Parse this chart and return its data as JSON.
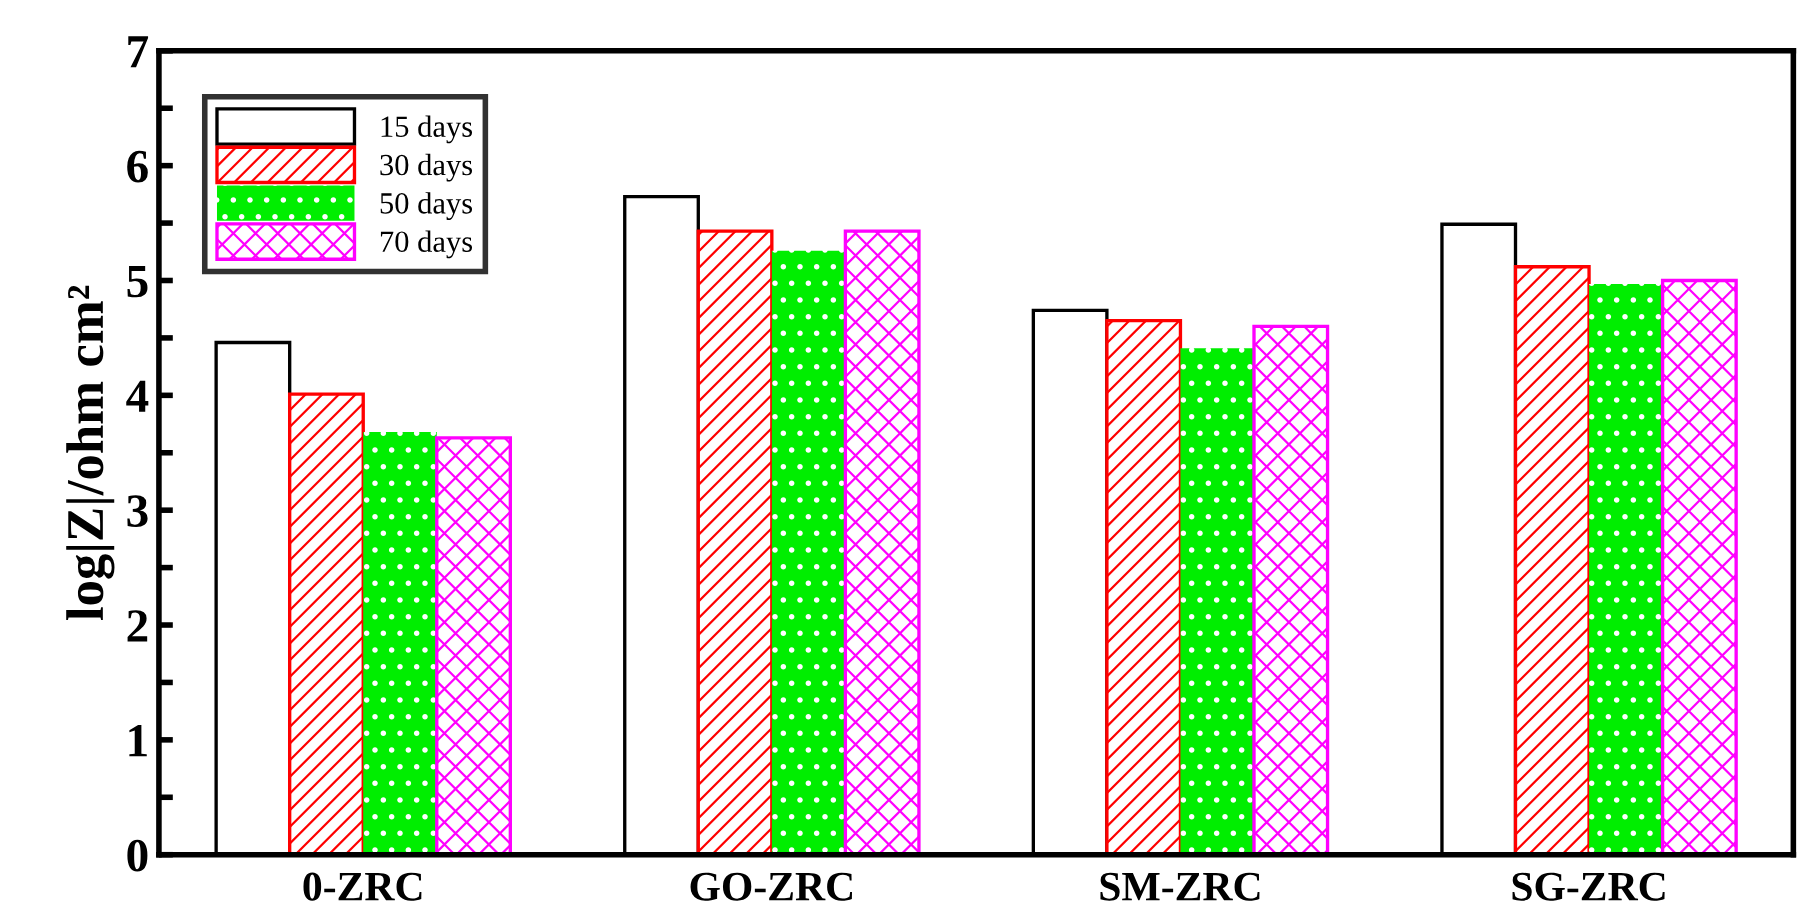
{
  "chart_data": {
    "type": "bar",
    "ylabel": "log|Z|/ohm cm²",
    "categories": [
      "0-ZRC",
      "GO-ZRC",
      "SM-ZRC",
      "SG-ZRC"
    ],
    "series": [
      {
        "name": "15 days",
        "color": "#000000",
        "values": [
          4.46,
          5.73,
          4.74,
          5.49
        ]
      },
      {
        "name": "30 days",
        "color": "#ff0000",
        "values": [
          4.01,
          5.43,
          4.65,
          5.12
        ]
      },
      {
        "name": "50 days",
        "color": "#00ee00",
        "values": [
          3.68,
          5.26,
          4.41,
          4.97
        ]
      },
      {
        "name": "70 days",
        "color": "#ff00ff",
        "values": [
          3.63,
          5.43,
          4.6,
          5.0
        ]
      }
    ],
    "ylim": [
      0,
      7
    ],
    "yticks": [
      0,
      {
        "value": 0.5,
        "label": null
      },
      1,
      {
        "value": 1.5,
        "label": null
      },
      2,
      {
        "value": 2.5,
        "label": null
      },
      3,
      {
        "value": 3.5,
        "label": null
      },
      4,
      {
        "value": 4.5,
        "label": null
      },
      5,
      {
        "value": 5.5,
        "label": null
      },
      6,
      {
        "value": 6.5,
        "label": null
      },
      7
    ],
    "legend": "top left",
    "grid": false
  }
}
